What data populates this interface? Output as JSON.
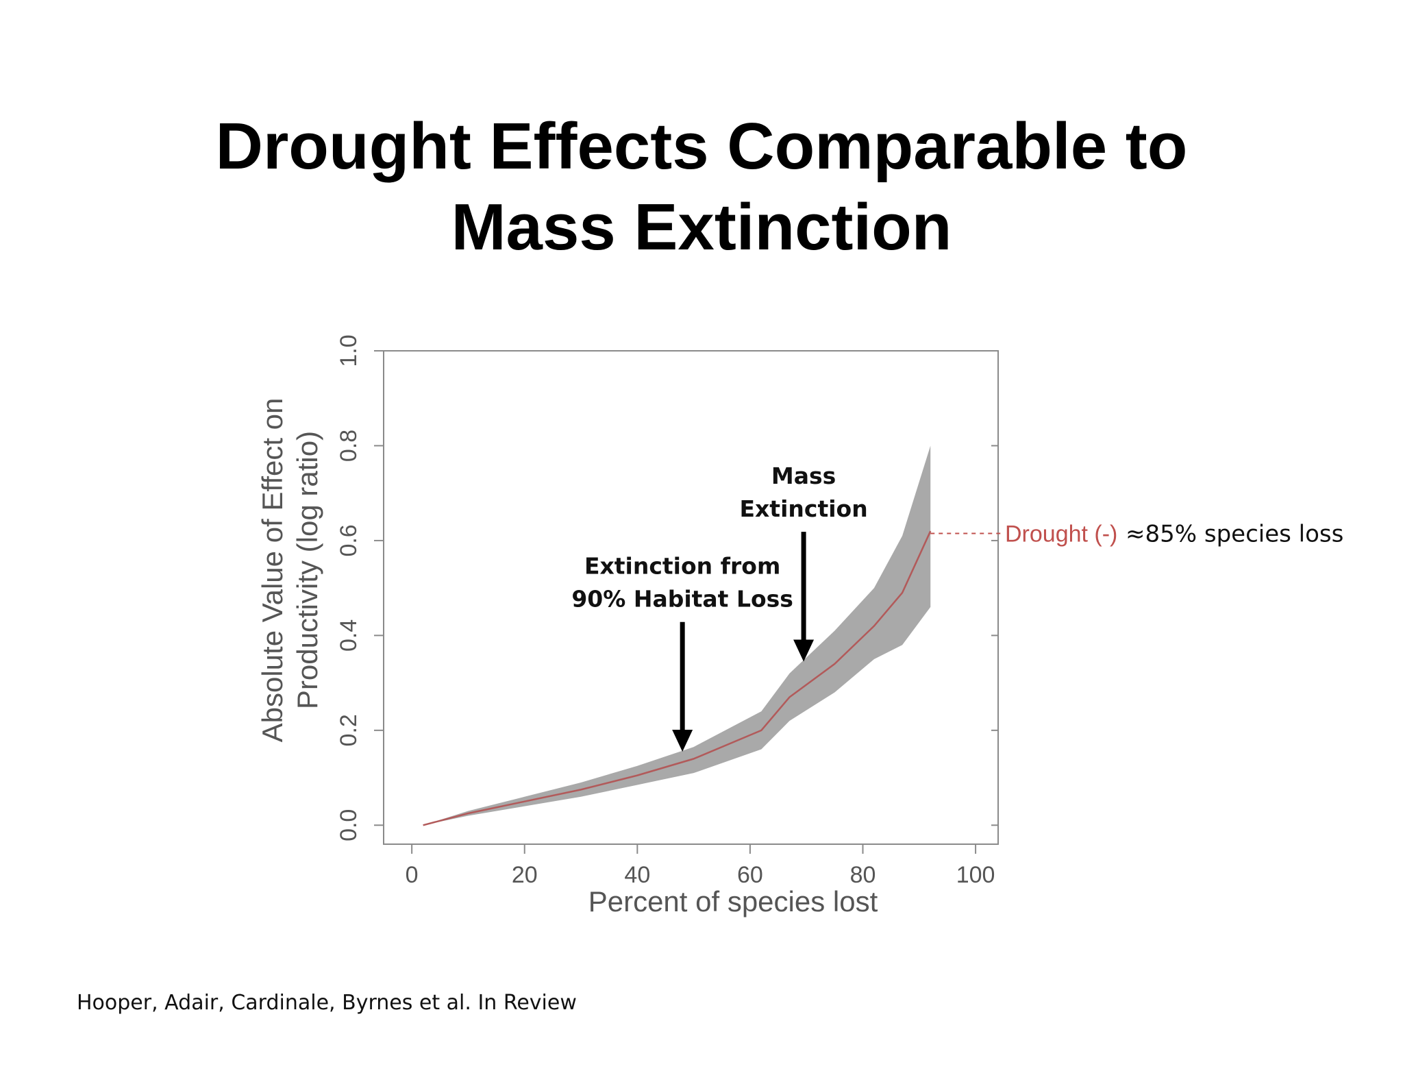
{
  "slide": {
    "title_line1": "Drought Effects Comparable to",
    "title_line2": "Mass Extinction",
    "citation": "Hooper, Adair, Cardinale, Byrnes et al. In Review"
  },
  "colors": {
    "band": "#a9a9a9",
    "mean_line": "#b25a5a",
    "drought_label": "#c0504d",
    "axis": "#8a8a8a",
    "axis_text": "#555555",
    "arrow": "#000000"
  },
  "chart_data": {
    "type": "area",
    "title": "",
    "xlabel": "Percent of species lost",
    "ylabel_line1": "Absolute Value of Effect on",
    "ylabel_line2": "Productivity (log ratio)",
    "xlim": [
      -5,
      104
    ],
    "ylim": [
      -0.04,
      1.0
    ],
    "x_ticks": [
      0,
      20,
      40,
      60,
      80,
      100
    ],
    "y_ticks": [
      0.0,
      0.2,
      0.4,
      0.6,
      0.8,
      1.0
    ],
    "x_tick_labels": [
      "0",
      "20",
      "40",
      "60",
      "80",
      "100"
    ],
    "y_tick_labels": [
      "0.0",
      "0.2",
      "0.4",
      "0.6",
      "0.8",
      "1.0"
    ],
    "grid": false,
    "series": [
      {
        "x": [
          2,
          10,
          20,
          30,
          40,
          50,
          62,
          67,
          75,
          82,
          87,
          92
        ],
        "mean": [
          0.0,
          0.025,
          0.05,
          0.075,
          0.105,
          0.14,
          0.2,
          0.27,
          0.34,
          0.42,
          0.49,
          0.62
        ],
        "lower": [
          0.0,
          0.02,
          0.04,
          0.06,
          0.085,
          0.11,
          0.16,
          0.22,
          0.28,
          0.35,
          0.38,
          0.46
        ],
        "upper": [
          0.0,
          0.03,
          0.06,
          0.09,
          0.125,
          0.165,
          0.24,
          0.32,
          0.41,
          0.5,
          0.61,
          0.8
        ]
      }
    ],
    "reference": {
      "y": 0.615,
      "label": "Drought (-)",
      "note": "≈85% species loss"
    },
    "annotations": [
      {
        "line1": "Extinction from",
        "line2": "90% Habitat Loss",
        "x": 48,
        "y_top": 0.44,
        "y_tip": 0.155
      },
      {
        "line1": "Mass",
        "line2": "Extinction",
        "x": 69.5,
        "y_top": 0.63,
        "y_tip": 0.345
      }
    ]
  }
}
